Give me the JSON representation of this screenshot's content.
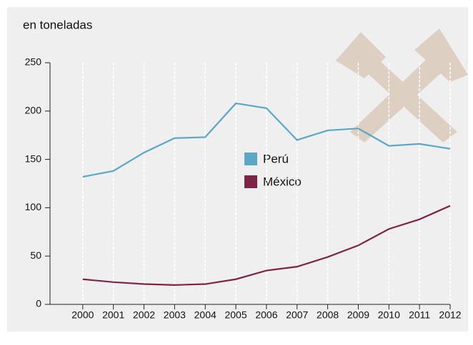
{
  "chart_data": {
    "type": "line",
    "title": "en toneladas",
    "x": [
      2000,
      2001,
      2002,
      2003,
      2004,
      2005,
      2006,
      2007,
      2008,
      2009,
      2010,
      2011,
      2012
    ],
    "xlim": [
      1999,
      2012
    ],
    "xticks": [
      2000,
      2001,
      2002,
      2003,
      2004,
      2005,
      2006,
      2007,
      2008,
      2009,
      2010,
      2011,
      2012
    ],
    "ylim": [
      0,
      250
    ],
    "yticks": [
      0,
      50,
      100,
      150,
      200,
      250
    ],
    "grid": true,
    "series": [
      {
        "name": "Perú",
        "color": "#5ba7c5",
        "values": [
          132,
          138,
          157,
          172,
          173,
          208,
          203,
          170,
          180,
          182,
          164,
          166,
          161
        ]
      },
      {
        "name": "México",
        "color": "#7e2446",
        "values": [
          26,
          23,
          21,
          20,
          21,
          26,
          35,
          39,
          49,
          61,
          78,
          88,
          102
        ]
      }
    ]
  }
}
